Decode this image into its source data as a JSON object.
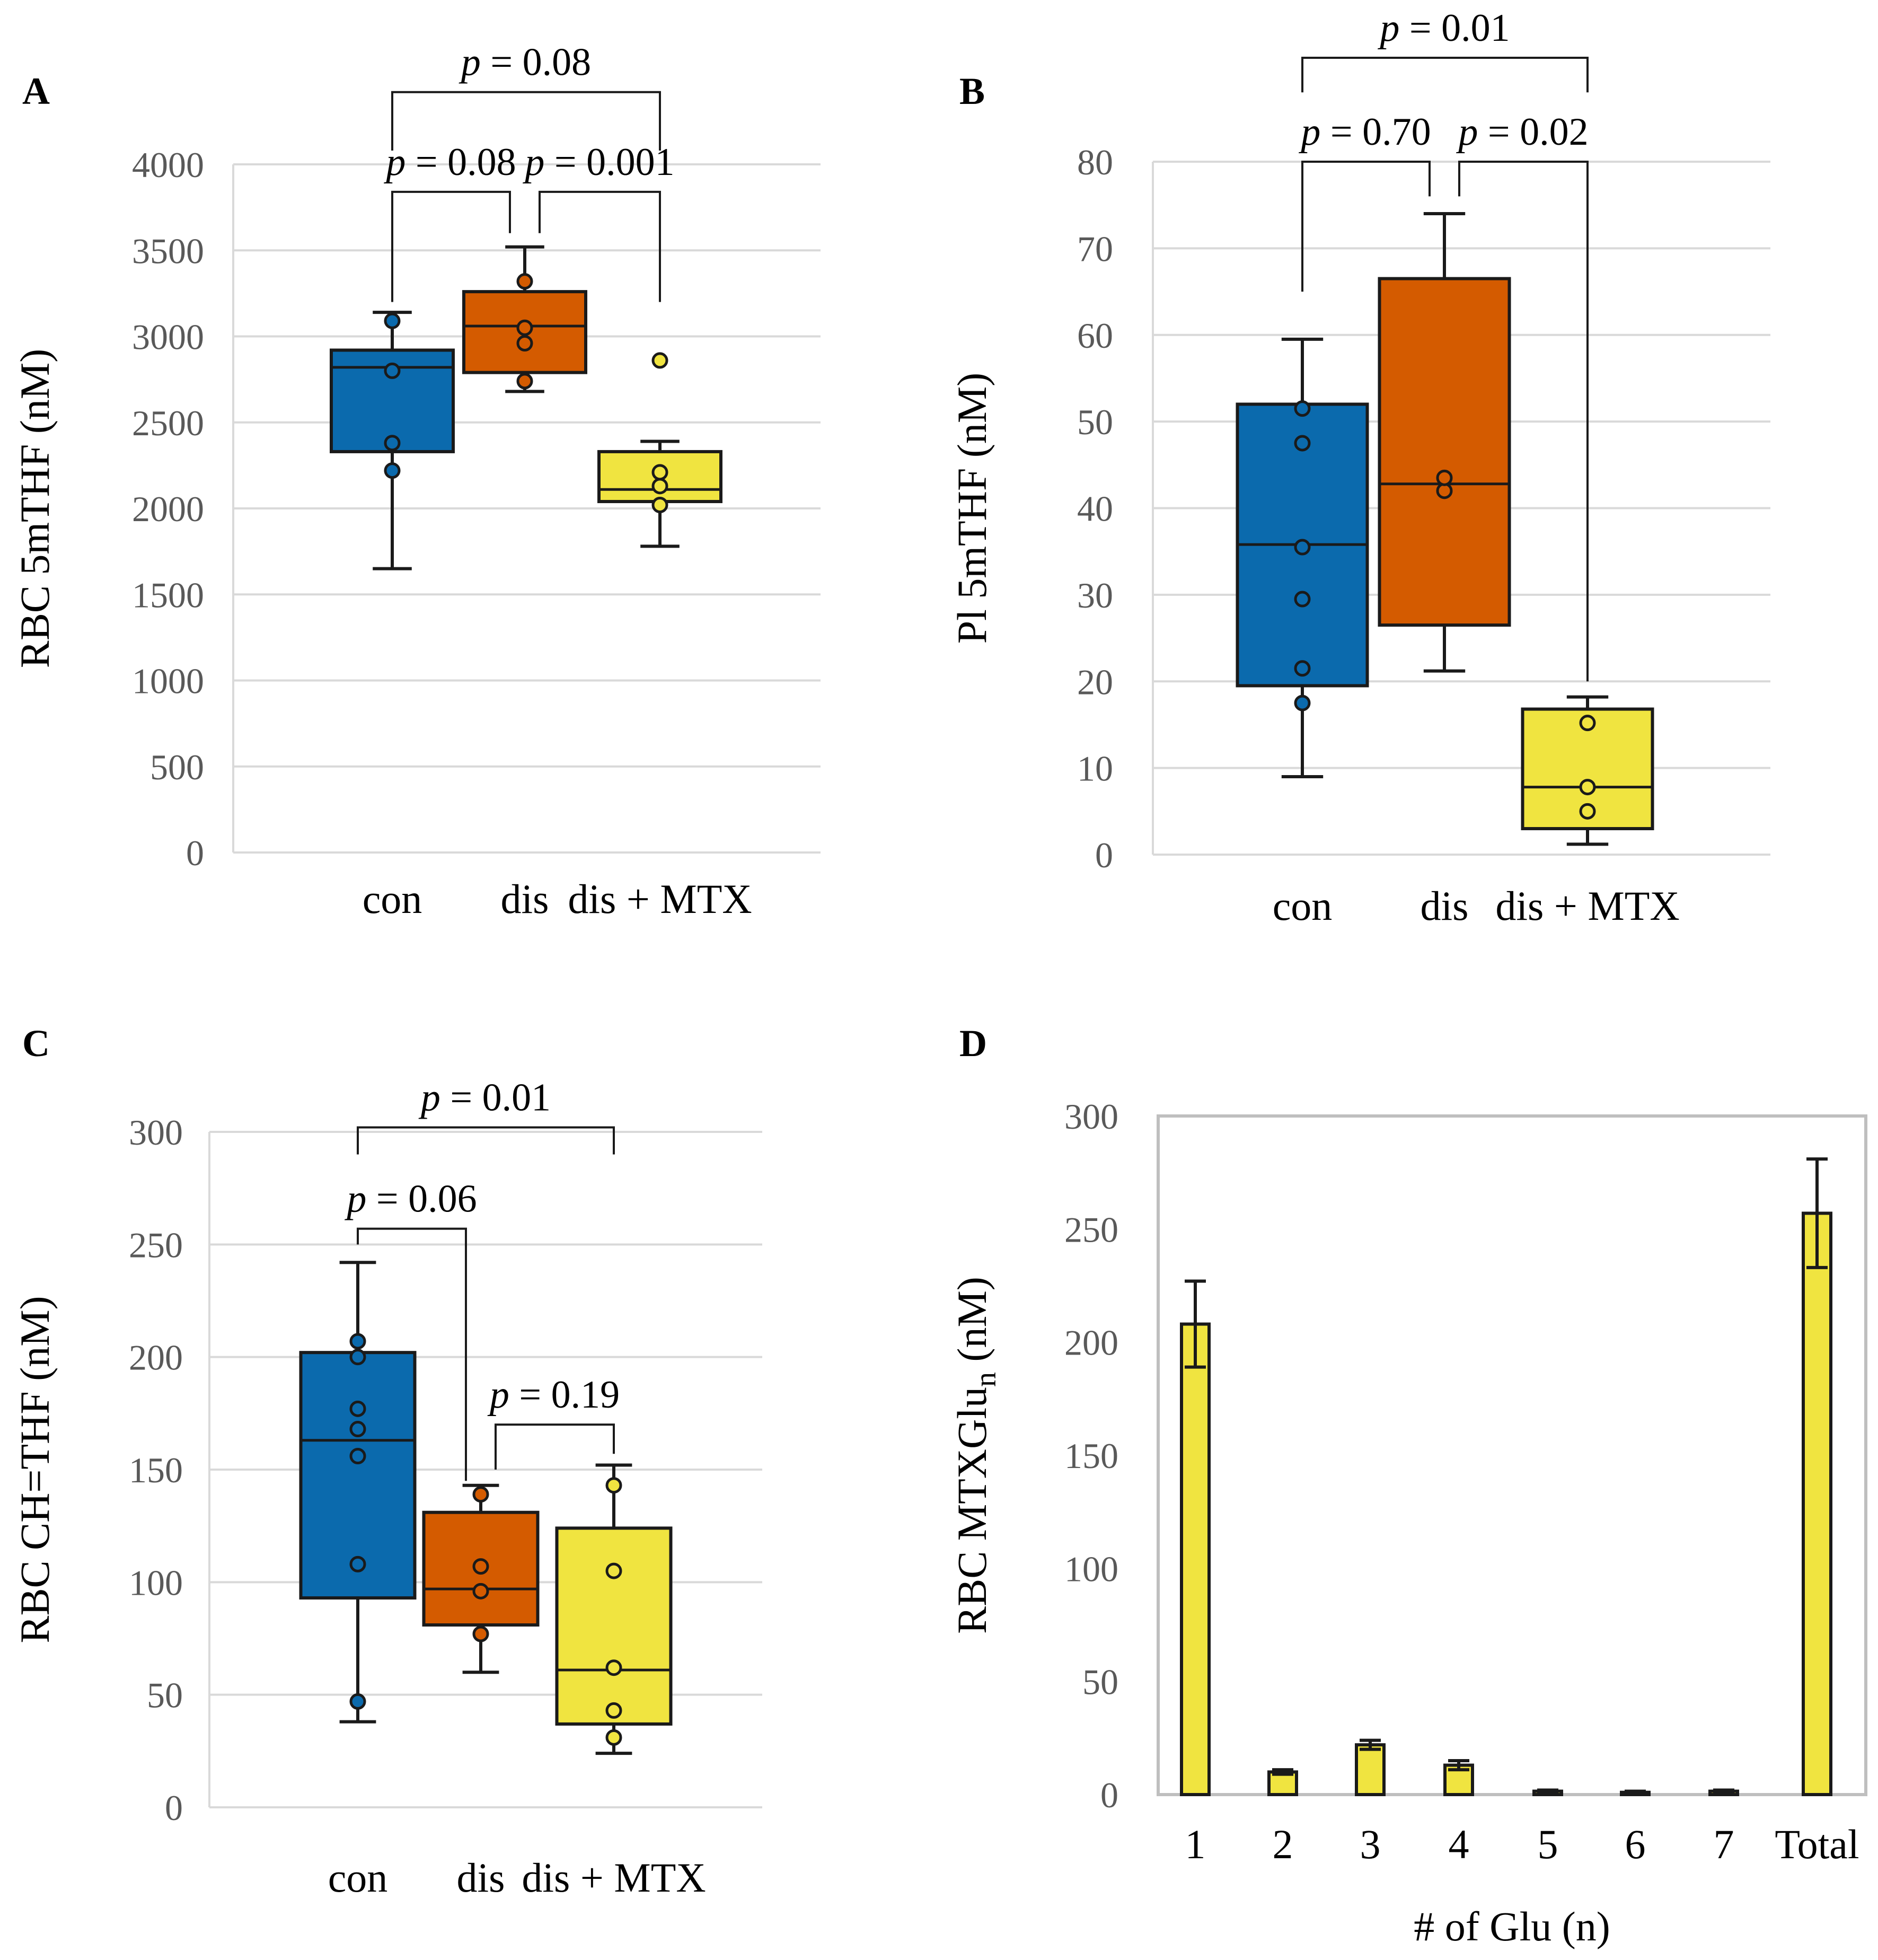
{
  "colors": {
    "con": "#0b6aad",
    "dis": "#d45b00",
    "mtx": "#f0e440"
  },
  "chart_data": [
    {
      "panel": "A",
      "type": "box",
      "ylabel": "RBC 5mTHF (nM)",
      "ylim": [
        0,
        4000
      ],
      "yticks": [
        0,
        500,
        1000,
        1500,
        2000,
        2500,
        3000,
        3500,
        4000
      ],
      "categories": [
        "con",
        "dis",
        "dis + MTX"
      ],
      "boxes": [
        {
          "name": "con",
          "color_key": "con",
          "whisker_low": 1650,
          "q1": 2330,
          "median": 2820,
          "q3": 2920,
          "whisker_high": 3140,
          "points": [
            2220,
            2380,
            2800,
            3090
          ]
        },
        {
          "name": "dis",
          "color_key": "dis",
          "whisker_low": 2680,
          "q1": 2790,
          "median": 3060,
          "q3": 3260,
          "whisker_high": 3520,
          "points": [
            2740,
            2960,
            3050,
            3320
          ]
        },
        {
          "name": "dis + MTX",
          "color_key": "mtx",
          "whisker_low": 1780,
          "q1": 2040,
          "median": 2110,
          "q3": 2330,
          "whisker_high": 2390,
          "points": [
            2020,
            2130,
            2210,
            2860
          ]
        }
      ],
      "comparisons": [
        {
          "label": "p = 0.08",
          "from": 0,
          "to": 1,
          "y_level": 3840,
          "drop_from": 3200,
          "drop_to": 3600
        },
        {
          "label": "p = 0.001",
          "from": 1,
          "to": 2,
          "y_level": 3840,
          "drop_from": 3600,
          "drop_to": 3200
        },
        {
          "label": "p = 0.08",
          "from": 0,
          "to": 2,
          "y_level": 4420,
          "drop_from": 4080,
          "drop_to": 4080
        }
      ]
    },
    {
      "panel": "B",
      "type": "box",
      "ylabel": "Pl 5mTHF (nM)",
      "ylim": [
        0,
        80
      ],
      "yticks": [
        0,
        10,
        20,
        30,
        40,
        50,
        60,
        70,
        80
      ],
      "categories": [
        "con",
        "dis",
        "dis + MTX"
      ],
      "boxes": [
        {
          "name": "con",
          "color_key": "con",
          "whisker_low": 9,
          "q1": 19.5,
          "median": 35.8,
          "q3": 52,
          "whisker_high": 59.5,
          "points": [
            17.5,
            21.5,
            29.5,
            35.5,
            47.5,
            51.5
          ]
        },
        {
          "name": "dis",
          "color_key": "dis",
          "whisker_low": 21.2,
          "q1": 26.5,
          "median": 42.8,
          "q3": 66.5,
          "whisker_high": 74,
          "points": [
            42,
            43.5
          ]
        },
        {
          "name": "dis + MTX",
          "color_key": "mtx",
          "whisker_low": 1.2,
          "q1": 3,
          "median": 7.8,
          "q3": 16.8,
          "whisker_high": 18.2,
          "points": [
            5,
            7.8,
            15.2
          ]
        }
      ],
      "comparisons": [
        {
          "label": "p = 0.70",
          "from": 0,
          "to": 1,
          "y_level": 80,
          "drop_from": 65,
          "drop_to": 76
        },
        {
          "label": "p = 0.02",
          "from": 1,
          "to": 2,
          "y_level": 80,
          "drop_from": 76,
          "drop_to": 20
        },
        {
          "label": "p = 0.01",
          "from": 0,
          "to": 2,
          "y_level": 92,
          "drop_from": 88,
          "drop_to": 88
        }
      ]
    },
    {
      "panel": "C",
      "type": "box",
      "ylabel": "RBC CH=THF (nM)",
      "ylim": [
        0,
        300
      ],
      "yticks": [
        0,
        50,
        100,
        150,
        200,
        250,
        300
      ],
      "categories": [
        "con",
        "dis",
        "dis + MTX"
      ],
      "boxes": [
        {
          "name": "con",
          "color_key": "con",
          "whisker_low": 38,
          "q1": 93,
          "median": 163,
          "q3": 202,
          "whisker_high": 242,
          "points": [
            47,
            108,
            156,
            168,
            177,
            200,
            207
          ]
        },
        {
          "name": "dis",
          "color_key": "dis",
          "whisker_low": 60,
          "q1": 81,
          "median": 97,
          "q3": 131,
          "whisker_high": 143,
          "points": [
            77,
            96,
            107,
            139
          ]
        },
        {
          "name": "dis + MTX",
          "color_key": "mtx",
          "whisker_low": 24,
          "q1": 37,
          "median": 61,
          "q3": 124,
          "whisker_high": 152,
          "points": [
            31,
            43,
            62,
            105,
            143
          ]
        }
      ],
      "comparisons": [
        {
          "label": "p = 0.06",
          "from": 0,
          "to": 1,
          "y_level": 257,
          "drop_from": 250,
          "drop_to": 145
        },
        {
          "label": "p = 0.19",
          "from": 1,
          "to": 2,
          "y_level": 170,
          "drop_from": 150,
          "drop_to": 157
        },
        {
          "label": "p = 0.01",
          "from": 0,
          "to": 2,
          "y_level": 302,
          "drop_from": 290,
          "drop_to": 290
        }
      ]
    },
    {
      "panel": "D",
      "type": "bar",
      "ylabel": "RBC MTXGlu",
      "ylabel_sub": "n",
      "ylabel_tail": " (nM)",
      "xlabel": "# of Glu (n)",
      "ylim": [
        0,
        300
      ],
      "yticks": [
        0,
        50,
        100,
        150,
        200,
        250,
        300
      ],
      "categories": [
        "1",
        "2",
        "3",
        "4",
        "5",
        "6",
        "7",
        "Total"
      ],
      "values": [
        208,
        10,
        22,
        13,
        1.5,
        1,
        1.5,
        257
      ],
      "errors": [
        19,
        1,
        2,
        2,
        0.5,
        0.5,
        0.5,
        24
      ]
    }
  ]
}
